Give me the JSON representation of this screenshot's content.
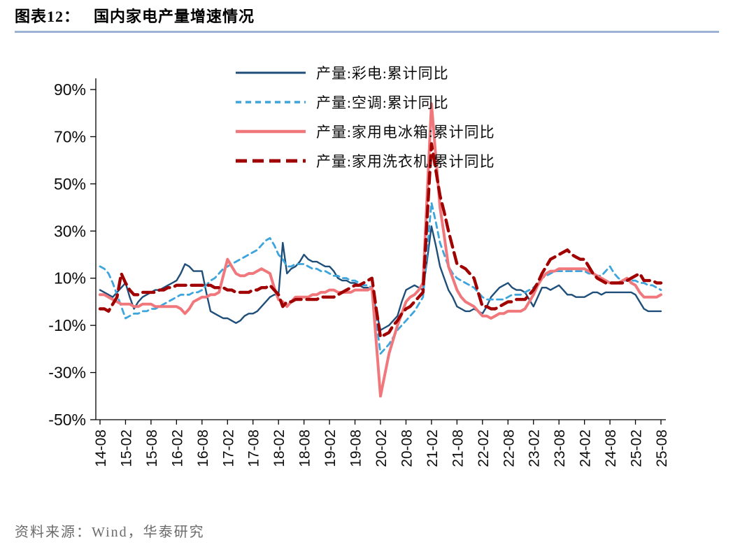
{
  "header": {
    "label_prefix": "图表12：",
    "title": "国内家电产量增速情况",
    "rule_color": "#9CB3D5"
  },
  "footer": {
    "source": "资料来源：Wind，华泰研究"
  },
  "chart_data": {
    "type": "line",
    "title": "国内家电产量增速情况",
    "x_tick_labels": [
      "14-08",
      "15-02",
      "15-08",
      "16-02",
      "16-08",
      "17-02",
      "17-08",
      "18-02",
      "18-08",
      "19-02",
      "19-08",
      "20-02",
      "20-08",
      "21-02",
      "21-08",
      "22-02",
      "22-08",
      "23-02",
      "23-08",
      "24-02",
      "24-08",
      "25-02",
      "25-08"
    ],
    "x_tick_every": 6,
    "n_points": 133,
    "ylim": [
      -50,
      90
    ],
    "y_ticks": [
      90,
      70,
      50,
      30,
      10,
      -10,
      -30,
      -50
    ],
    "y_tick_suffix": "%",
    "grid": false,
    "legend_position": "top-center",
    "series": [
      {
        "name": "产量:彩电:累计同比",
        "color": "#1F4E79",
        "style": "solid",
        "width": 2.4,
        "values": [
          5,
          4,
          3,
          2,
          4,
          6,
          8,
          2,
          -3,
          0,
          2,
          3,
          4,
          5,
          5,
          6,
          7,
          8,
          9,
          12,
          16,
          15,
          13,
          13,
          13,
          4,
          -4,
          -5,
          -6,
          -7,
          -7,
          -8,
          -9,
          -8,
          -6,
          -5,
          -5,
          -4,
          -2,
          0,
          2,
          3,
          3,
          25,
          12,
          14,
          15,
          17,
          20,
          18,
          17,
          17,
          16,
          15,
          15,
          13,
          10,
          9,
          9,
          8,
          8,
          7,
          6,
          6,
          5,
          -4,
          -12,
          -11,
          -10,
          -8,
          -6,
          0,
          5,
          6,
          7,
          6,
          5,
          18,
          32,
          24,
          15,
          10,
          5,
          2,
          -2,
          -3,
          -4,
          -4,
          -3,
          -4,
          -5,
          -2,
          2,
          4,
          6,
          7,
          8,
          6,
          5,
          5,
          4,
          1,
          -2,
          2,
          6,
          6,
          5,
          6,
          7,
          5,
          3,
          3,
          2,
          2,
          2,
          3,
          4,
          4,
          3,
          4,
          4,
          4,
          4,
          4,
          4,
          4,
          3,
          0,
          -3,
          -4,
          -4,
          -4,
          -4
        ]
      },
      {
        "name": "产量:空调:累计同比",
        "color": "#3EA5DC",
        "style": "dashed",
        "dash": "8,6",
        "width": 2.8,
        "values": [
          15,
          14,
          12,
          8,
          3,
          -2,
          -7,
          -6,
          -5,
          -5,
          -4,
          -4,
          -3,
          -3,
          -2,
          -1,
          0,
          1,
          2,
          3,
          3,
          3,
          4,
          4,
          5,
          7,
          9,
          10,
          12,
          14,
          15,
          16,
          17,
          18,
          19,
          20,
          21,
          22,
          24,
          26,
          27,
          24,
          20,
          18,
          15,
          15,
          16,
          16,
          16,
          15,
          14,
          14,
          13,
          13,
          12,
          11,
          11,
          10,
          10,
          9,
          9,
          8,
          7,
          7,
          6,
          -8,
          -22,
          -20,
          -18,
          -15,
          -12,
          -10,
          -8,
          -6,
          -4,
          -1,
          2,
          22,
          42,
          34,
          25,
          20,
          15,
          12,
          10,
          9,
          8,
          7,
          6,
          4,
          2,
          1,
          1,
          1,
          1,
          1,
          2,
          3,
          3,
          3,
          4,
          5,
          6,
          8,
          10,
          11,
          12,
          13,
          13,
          13,
          13,
          13,
          13,
          13,
          13,
          12,
          12,
          11,
          11,
          13,
          15,
          12,
          10,
          9,
          9,
          9,
          9,
          8,
          8,
          7,
          7,
          6,
          5
        ]
      },
      {
        "name": "产量:家用电冰箱:累计同比",
        "color": "#F0787C",
        "style": "solid",
        "width": 4,
        "values": [
          3,
          3,
          2,
          1,
          0,
          -1,
          -1,
          -1,
          -2,
          -2,
          -1,
          -1,
          -1,
          -2,
          -2,
          -2,
          -2,
          -2,
          -2,
          -3,
          -5,
          -3,
          0,
          1,
          2,
          2,
          3,
          3,
          4,
          11,
          18,
          15,
          12,
          11,
          11,
          12,
          12,
          13,
          14,
          13,
          12,
          6,
          1,
          0,
          -2,
          0,
          2,
          2,
          2,
          2,
          3,
          3,
          4,
          4,
          5,
          5,
          4,
          4,
          4,
          4,
          5,
          5,
          5,
          5,
          6,
          -17,
          -40,
          -31,
          -22,
          -16,
          -10,
          -5,
          0,
          2,
          3,
          5,
          8,
          46,
          84,
          62,
          40,
          28,
          15,
          10,
          5,
          2,
          0,
          -1,
          -2,
          -4,
          -6,
          -6,
          -7,
          -6,
          -5,
          -5,
          -4,
          -4,
          -4,
          -4,
          -3,
          0,
          3,
          7,
          10,
          12,
          13,
          13,
          14,
          14,
          14,
          14,
          14,
          14,
          14,
          13,
          12,
          11,
          10,
          9,
          8,
          8,
          8,
          9,
          10,
          8,
          7,
          4,
          2,
          2,
          2,
          2,
          3
        ]
      },
      {
        "name": "产量:家用洗衣机:累计同比",
        "color": "#A00000",
        "style": "dashed",
        "dash": "16,8",
        "width": 4.4,
        "values": [
          -3,
          -3,
          -4,
          -1,
          2,
          12,
          8,
          5,
          3,
          3,
          4,
          4,
          4,
          4,
          5,
          5,
          6,
          6,
          7,
          7,
          7,
          7,
          7,
          7,
          7,
          7,
          7,
          6,
          6,
          6,
          5,
          5,
          4,
          4,
          4,
          4,
          5,
          5,
          6,
          6,
          7,
          5,
          3,
          -2,
          0,
          0,
          1,
          1,
          1,
          1,
          1,
          1,
          2,
          2,
          2,
          2,
          3,
          4,
          5,
          6,
          7,
          7,
          8,
          9,
          10,
          -3,
          -15,
          -14,
          -13,
          -10,
          -8,
          -5,
          -3,
          -2,
          0,
          2,
          4,
          36,
          67,
          56,
          45,
          38,
          30,
          23,
          16,
          15,
          14,
          12,
          10,
          4,
          -2,
          -2,
          -3,
          -3,
          -2,
          -1,
          0,
          0,
          1,
          1,
          1,
          3,
          5,
          8,
          12,
          15,
          18,
          19,
          20,
          21,
          22,
          20,
          19,
          18,
          18,
          15,
          12,
          10,
          9,
          8,
          8,
          8,
          8,
          8,
          9,
          10,
          11,
          12,
          9,
          9,
          9,
          8,
          8
        ]
      }
    ]
  }
}
